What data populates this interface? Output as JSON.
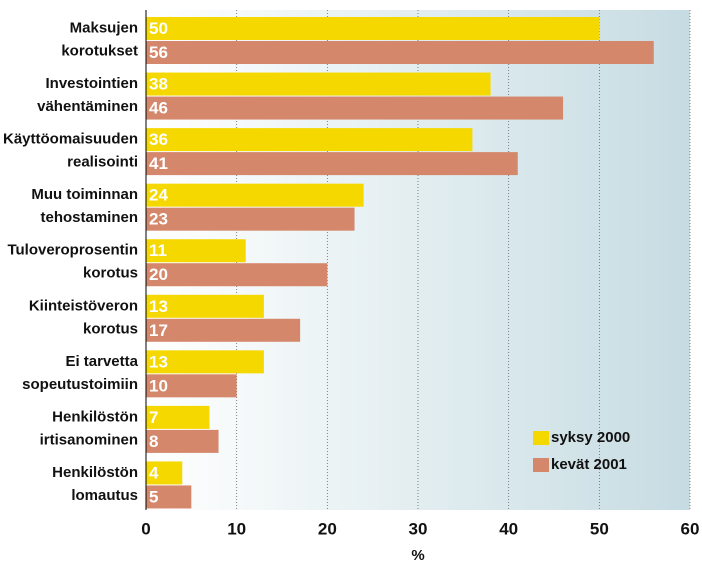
{
  "chart_data": {
    "type": "bar",
    "orientation": "horizontal",
    "categories": [
      "Maksujen\nkorotukset",
      "Investointien\nvähentäminen",
      "Käyttöomaisuuden\nrealisointi",
      "Muu toiminnan\ntehostaminen",
      "Tuloveroprosentin\nkorotus",
      "Kiinteistöveron\nkorotus",
      "Ei tarvetta\nsopeutustoimiin",
      "Henkilöstön\nirtisanominen",
      "Henkilöstön\nlomautus"
    ],
    "series": [
      {
        "name": "syksy 2000",
        "color": "#f5d800",
        "values": [
          50,
          38,
          36,
          24,
          11,
          13,
          13,
          7,
          4
        ]
      },
      {
        "name": "kevät 2001",
        "color": "#d4876a",
        "values": [
          56,
          46,
          41,
          23,
          20,
          17,
          10,
          8,
          5
        ]
      }
    ],
    "xlabel": "%",
    "xlim": [
      0,
      60
    ],
    "xticks": [
      0,
      10,
      20,
      30,
      40,
      50,
      60
    ],
    "grid": true,
    "legend": "lower right"
  }
}
